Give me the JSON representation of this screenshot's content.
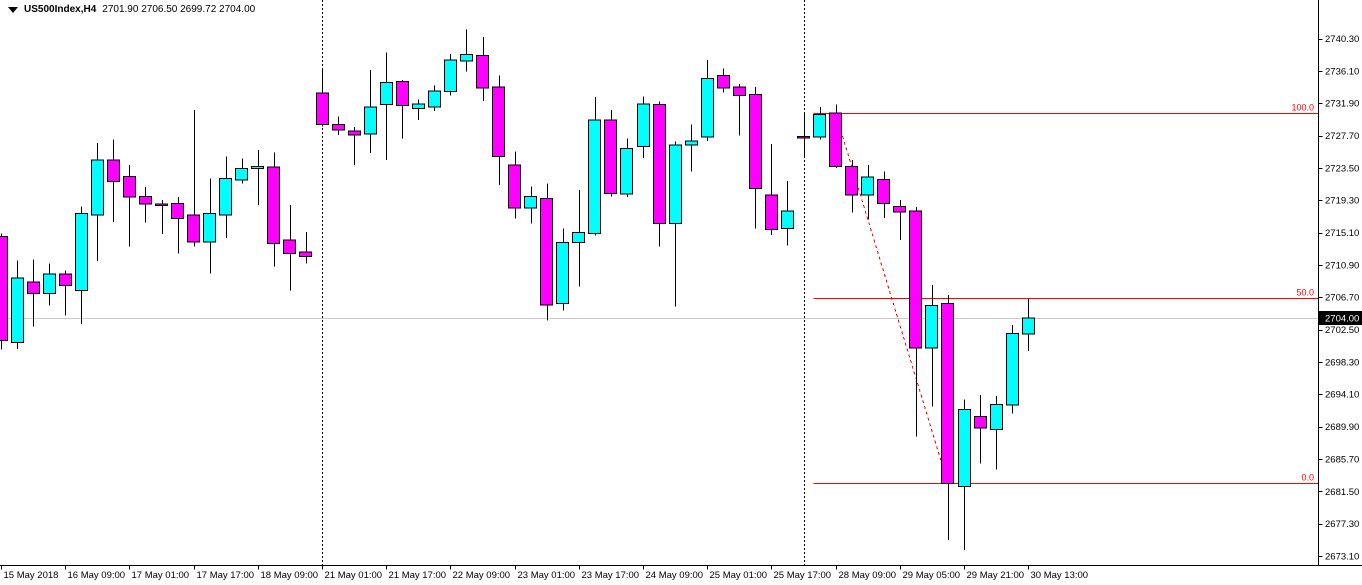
{
  "title": {
    "symbol": "US500Index,H4",
    "ohlc": "2701.90 2706.50 2699.72 2704.00"
  },
  "colors": {
    "background": "#ffffff",
    "bull_candle": "#00FFFF",
    "bear_candle": "#FF00FF",
    "candle_outline": "#000000",
    "fib_line": "#FF0000",
    "current_price_line": "#c9c9c9",
    "axis_line": "#000000",
    "axis_text": "#000000",
    "separator_line": "#000000",
    "price_box_bg": "#000000",
    "price_box_text": "#ffffff"
  },
  "axis": {
    "price_labels": [
      "2740.30",
      "2736.10",
      "2731.90",
      "2727.70",
      "2723.50",
      "2719.30",
      "2715.10",
      "2710.90",
      "2706.70",
      "2702.50",
      "2698.30",
      "2694.10",
      "2689.90",
      "2685.70",
      "2681.50",
      "2677.30",
      "2673.10"
    ],
    "current_price_label": "2704.00"
  },
  "chart_data": {
    "type": "candlestick",
    "title": "US500Index,H4 2701.90 2706.50 2699.72 2704.00",
    "symbol": "US500Index",
    "timeframe": "H4",
    "current_price": 2704.0,
    "price_axis": {
      "min": 2673.1,
      "max": 2740.3,
      "tick_step": 4.2
    },
    "time_labels": [
      {
        "index": 0,
        "label": "15 May 2018"
      },
      {
        "index": 4,
        "label": "16 May 09:00"
      },
      {
        "index": 8,
        "label": "17 May 01:00"
      },
      {
        "index": 12,
        "label": "17 May 17:00"
      },
      {
        "index": 16,
        "label": "18 May 09:00"
      },
      {
        "index": 20,
        "label": "21 May 01:00"
      },
      {
        "index": 24,
        "label": "21 May 17:00"
      },
      {
        "index": 28,
        "label": "22 May 09:00"
      },
      {
        "index": 32,
        "label": "23 May 01:00"
      },
      {
        "index": 36,
        "label": "23 May 17:00"
      },
      {
        "index": 40,
        "label": "24 May 09:00"
      },
      {
        "index": 44,
        "label": "25 May 01:00"
      },
      {
        "index": 48,
        "label": "25 May 17:00"
      },
      {
        "index": 52,
        "label": "28 May 09:00"
      },
      {
        "index": 56,
        "label": "29 May 05:00"
      },
      {
        "index": 60,
        "label": "29 May 21:00"
      },
      {
        "index": 64,
        "label": "30 May 13:00"
      }
    ],
    "week_separator_indices": [
      20,
      50
    ],
    "fibonacci": {
      "levels": [
        {
          "label": "100.0",
          "price": 2730.6
        },
        {
          "label": "50.0",
          "price": 2706.6
        },
        {
          "label": "0.0",
          "price": 2682.6
        }
      ],
      "base_line": {
        "from_index": 52,
        "from_price": 2730.6,
        "to_index": 59,
        "to_price": 2682.5
      },
      "lines_start_index": 51
    },
    "candles_format": [
      "open",
      "high",
      "low",
      "close"
    ],
    "candles": [
      [
        2714.6,
        2715.0,
        2699.9,
        2701.1
      ],
      [
        2700.8,
        2711.5,
        2700.0,
        2709.2
      ],
      [
        2708.7,
        2711.6,
        2702.9,
        2707.2
      ],
      [
        2707.2,
        2711.1,
        2705.6,
        2709.7
      ],
      [
        2709.7,
        2710.2,
        2704.3,
        2708.2
      ],
      [
        2707.6,
        2718.5,
        2703.2,
        2717.6
      ],
      [
        2717.4,
        2726.7,
        2711.4,
        2724.5
      ],
      [
        2724.5,
        2727.2,
        2716.5,
        2721.7
      ],
      [
        2722.4,
        2723.9,
        2713.3,
        2719.7
      ],
      [
        2719.8,
        2721.0,
        2716.4,
        2718.8
      ],
      [
        2718.8,
        2719.3,
        2714.9,
        2718.7
      ],
      [
        2718.9,
        2719.7,
        2712.4,
        2716.9
      ],
      [
        2717.4,
        2731.0,
        2713.3,
        2713.9
      ],
      [
        2713.9,
        2722.1,
        2709.8,
        2717.6
      ],
      [
        2717.4,
        2725.0,
        2714.4,
        2722.1
      ],
      [
        2721.9,
        2724.7,
        2721.5,
        2723.4
      ],
      [
        2723.4,
        2725.8,
        2718.7,
        2723.7
      ],
      [
        2723.6,
        2725.5,
        2710.7,
        2713.7
      ],
      [
        2714.1,
        2718.7,
        2707.6,
        2712.4
      ],
      [
        2712.6,
        2715.2,
        2711.1,
        2712.0
      ],
      [
        2733.2,
        2736.4,
        2728.9,
        2729.1
      ],
      [
        2729.1,
        2730.2,
        2727.8,
        2728.4
      ],
      [
        2728.3,
        2728.8,
        2723.9,
        2727.8
      ],
      [
        2727.9,
        2736.2,
        2725.4,
        2731.4
      ],
      [
        2731.7,
        2738.5,
        2724.5,
        2734.6
      ],
      [
        2734.7,
        2734.9,
        2727.3,
        2731.6
      ],
      [
        2731.2,
        2732.4,
        2729.7,
        2731.8
      ],
      [
        2731.4,
        2734.2,
        2730.9,
        2733.5
      ],
      [
        2733.4,
        2738.3,
        2732.9,
        2737.5
      ],
      [
        2737.4,
        2741.5,
        2736.0,
        2738.2
      ],
      [
        2738.1,
        2740.5,
        2732.2,
        2733.9
      ],
      [
        2734.0,
        2735.5,
        2721.3,
        2725.0
      ],
      [
        2723.9,
        2725.6,
        2716.9,
        2718.3
      ],
      [
        2718.3,
        2721.1,
        2716.3,
        2719.8
      ],
      [
        2719.5,
        2721.5,
        2703.7,
        2705.7
      ],
      [
        2705.9,
        2715.6,
        2705.0,
        2713.8
      ],
      [
        2713.8,
        2720.6,
        2708.1,
        2715.1
      ],
      [
        2715.0,
        2732.7,
        2714.7,
        2729.7
      ],
      [
        2729.7,
        2731.0,
        2719.8,
        2720.2
      ],
      [
        2720.1,
        2727.3,
        2719.7,
        2726.0
      ],
      [
        2726.3,
        2732.8,
        2724.8,
        2731.8
      ],
      [
        2731.7,
        2732.1,
        2713.3,
        2716.3
      ],
      [
        2716.3,
        2726.9,
        2705.5,
        2726.5
      ],
      [
        2726.5,
        2729.1,
        2723.0,
        2727.0
      ],
      [
        2727.5,
        2737.5,
        2727.0,
        2735.1
      ],
      [
        2735.5,
        2736.4,
        2733.3,
        2733.9
      ],
      [
        2734.0,
        2734.4,
        2727.7,
        2732.9
      ],
      [
        2733.0,
        2734.0,
        2715.6,
        2720.8
      ],
      [
        2720.0,
        2726.6,
        2714.8,
        2715.5
      ],
      [
        2715.6,
        2721.8,
        2713.4,
        2717.9
      ],
      [
        2727.6,
        2730.5,
        2724.8,
        2727.4
      ],
      [
        2727.5,
        2731.4,
        2727.2,
        2730.4
      ],
      [
        2730.6,
        2731.7,
        2723.5,
        2723.7
      ],
      [
        2723.7,
        2724.5,
        2717.7,
        2720.0
      ],
      [
        2720.0,
        2723.9,
        2716.8,
        2722.3
      ],
      [
        2722.0,
        2723.0,
        2717.0,
        2718.9
      ],
      [
        2718.5,
        2719.3,
        2714.1,
        2717.8
      ],
      [
        2717.9,
        2718.4,
        2688.6,
        2700.1
      ],
      [
        2700.1,
        2708.3,
        2692.5,
        2705.6
      ],
      [
        2705.9,
        2707.0,
        2675.2,
        2682.5
      ],
      [
        2682.1,
        2693.4,
        2673.9,
        2692.1
      ],
      [
        2691.2,
        2694.0,
        2685.1,
        2689.7
      ],
      [
        2689.5,
        2693.9,
        2684.3,
        2692.8
      ],
      [
        2692.7,
        2703.1,
        2691.6,
        2702.0
      ],
      [
        2701.9,
        2706.5,
        2699.72,
        2704.0
      ]
    ]
  }
}
